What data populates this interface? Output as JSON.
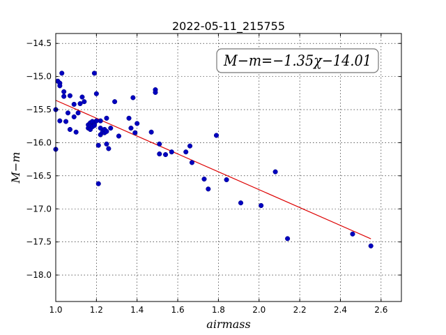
{
  "chart_data": {
    "type": "scatter",
    "title": "2022-05-11_215755",
    "xlabel": "airmass",
    "ylabel": "M−m",
    "xlim": [
      1.0,
      2.7
    ],
    "ylim": [
      -18.4,
      -14.35
    ],
    "x_ticks": [
      "1.0",
      "1.2",
      "1.4",
      "1.6",
      "1.8",
      "2.0",
      "2.2",
      "2.4",
      "2.6"
    ],
    "y_ticks": [
      "−14.5",
      "−15.0",
      "−15.5",
      "−16.0",
      "−16.5",
      "−17.0",
      "−17.5",
      "−18.0"
    ],
    "grid": true,
    "annotation": "M−m=−1.35χ−14.01",
    "annotation_position": "top-right",
    "point_color": "#0000bf",
    "fit_color": "#dd0000",
    "fit": {
      "slope": -1.35,
      "intercept": -14.01,
      "x_range": [
        1.0,
        2.55
      ]
    },
    "points": [
      [
        1.0,
        -15.5
      ],
      [
        1.0,
        -16.1
      ],
      [
        1.01,
        -15.07
      ],
      [
        1.02,
        -15.1
      ],
      [
        1.02,
        -15.14
      ],
      [
        1.02,
        -15.67
      ],
      [
        1.03,
        -14.95
      ],
      [
        1.04,
        -15.23
      ],
      [
        1.04,
        -15.3
      ],
      [
        1.05,
        -15.68
      ],
      [
        1.06,
        -15.55
      ],
      [
        1.07,
        -15.29
      ],
      [
        1.07,
        -15.8
      ],
      [
        1.09,
        -15.42
      ],
      [
        1.09,
        -15.61
      ],
      [
        1.1,
        -15.84
      ],
      [
        1.11,
        -15.55
      ],
      [
        1.12,
        -15.41
      ],
      [
        1.13,
        -15.31
      ],
      [
        1.14,
        -15.38
      ],
      [
        1.16,
        -15.73
      ],
      [
        1.16,
        -15.78
      ],
      [
        1.17,
        -15.7
      ],
      [
        1.17,
        -15.75
      ],
      [
        1.17,
        -15.8
      ],
      [
        1.18,
        -15.68
      ],
      [
        1.18,
        -15.76
      ],
      [
        1.19,
        -15.72
      ],
      [
        1.19,
        -15.74
      ],
      [
        1.19,
        -14.95
      ],
      [
        1.2,
        -15.67
      ],
      [
        1.2,
        -15.26
      ],
      [
        1.21,
        -16.04
      ],
      [
        1.21,
        -16.62
      ],
      [
        1.22,
        -15.67
      ],
      [
        1.22,
        -15.78
      ],
      [
        1.22,
        -15.88
      ],
      [
        1.23,
        -15.84
      ],
      [
        1.24,
        -15.85
      ],
      [
        1.24,
        -15.8
      ],
      [
        1.25,
        -15.63
      ],
      [
        1.25,
        -15.83
      ],
      [
        1.25,
        -16.02
      ],
      [
        1.26,
        -16.09
      ],
      [
        1.27,
        -15.78
      ],
      [
        1.29,
        -15.38
      ],
      [
        1.31,
        -15.9
      ],
      [
        1.36,
        -15.63
      ],
      [
        1.37,
        -15.78
      ],
      [
        1.38,
        -15.32
      ],
      [
        1.39,
        -15.85
      ],
      [
        1.4,
        -15.71
      ],
      [
        1.47,
        -15.84
      ],
      [
        1.49,
        -15.2
      ],
      [
        1.49,
        -15.24
      ],
      [
        1.51,
        -16.17
      ],
      [
        1.51,
        -16.02
      ],
      [
        1.54,
        -16.18
      ],
      [
        1.57,
        -16.14
      ],
      [
        1.64,
        -16.14
      ],
      [
        1.66,
        -16.05
      ],
      [
        1.67,
        -16.3
      ],
      [
        1.73,
        -16.55
      ],
      [
        1.75,
        -16.7
      ],
      [
        1.79,
        -15.89
      ],
      [
        1.84,
        -16.56
      ],
      [
        1.91,
        -16.91
      ],
      [
        2.01,
        -16.95
      ],
      [
        2.08,
        -16.44
      ],
      [
        2.14,
        -17.45
      ],
      [
        2.46,
        -17.38
      ],
      [
        2.55,
        -17.56
      ]
    ]
  }
}
